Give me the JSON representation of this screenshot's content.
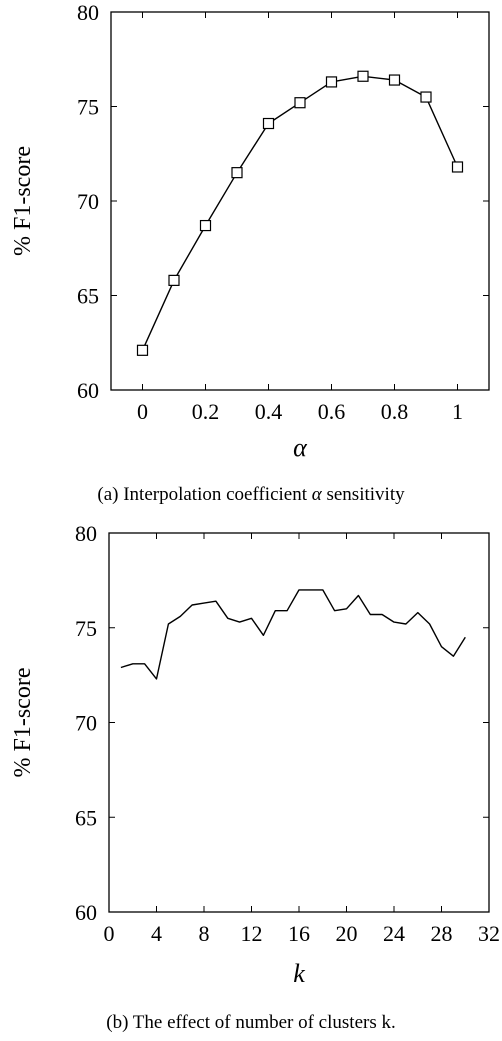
{
  "chart_data": [
    {
      "type": "line",
      "x": [
        0,
        0.1,
        0.2,
        0.3,
        0.4,
        0.5,
        0.6,
        0.7,
        0.8,
        0.9,
        1.0
      ],
      "series": [
        {
          "values": [
            62.1,
            65.8,
            68.7,
            71.5,
            74.1,
            75.2,
            76.3,
            76.6,
            76.4,
            75.5,
            71.8
          ],
          "marker": "square"
        }
      ],
      "xlabel": "α",
      "ylabel": "% F1-score",
      "xlim": [
        -0.1,
        1.1
      ],
      "ylim": [
        60,
        80
      ],
      "xticks": [
        0,
        0.2,
        0.4,
        0.6,
        0.8,
        1
      ],
      "xtick_labels": [
        "0",
        "0.2",
        "0.4",
        "0.6",
        "0.8",
        "1"
      ],
      "yticks": [
        60,
        65,
        70,
        75,
        80
      ],
      "ytick_labels": [
        "60",
        "65",
        "70",
        "75",
        "80"
      ],
      "grid": false,
      "caption": {
        "prefix": "(a) Interpolation coefficient ",
        "symbol": "α",
        "suffix": " sensitivity"
      }
    },
    {
      "type": "line",
      "x": [
        1,
        2,
        3,
        4,
        5,
        6,
        7,
        8,
        9,
        10,
        11,
        12,
        13,
        14,
        15,
        16,
        17,
        18,
        19,
        20,
        21,
        22,
        23,
        24,
        25,
        26,
        27,
        28,
        29,
        30
      ],
      "series": [
        {
          "values": [
            72.9,
            73.1,
            73.1,
            72.3,
            75.2,
            75.6,
            76.2,
            76.3,
            76.4,
            75.5,
            75.3,
            75.5,
            74.6,
            75.9,
            75.9,
            77.0,
            77.0,
            77.0,
            75.9,
            76.0,
            76.7,
            75.7,
            75.7,
            75.3,
            75.2,
            75.8,
            75.2,
            74.0,
            73.5,
            74.5
          ]
        }
      ],
      "xlabel": "k",
      "ylabel": "% F1-score",
      "xlim": [
        0,
        32
      ],
      "ylim": [
        60,
        80
      ],
      "xticks": [
        0,
        4,
        8,
        12,
        16,
        20,
        24,
        28,
        32
      ],
      "xtick_labels": [
        "0",
        "4",
        "8",
        "12",
        "16",
        "20",
        "24",
        "28",
        "32"
      ],
      "yticks": [
        60,
        65,
        70,
        75,
        80
      ],
      "ytick_labels": [
        "60",
        "65",
        "70",
        "75",
        "80"
      ],
      "grid": false,
      "caption": {
        "prefix": "(b) The effect of number of clusters k.",
        "symbol": "",
        "suffix": ""
      }
    }
  ]
}
